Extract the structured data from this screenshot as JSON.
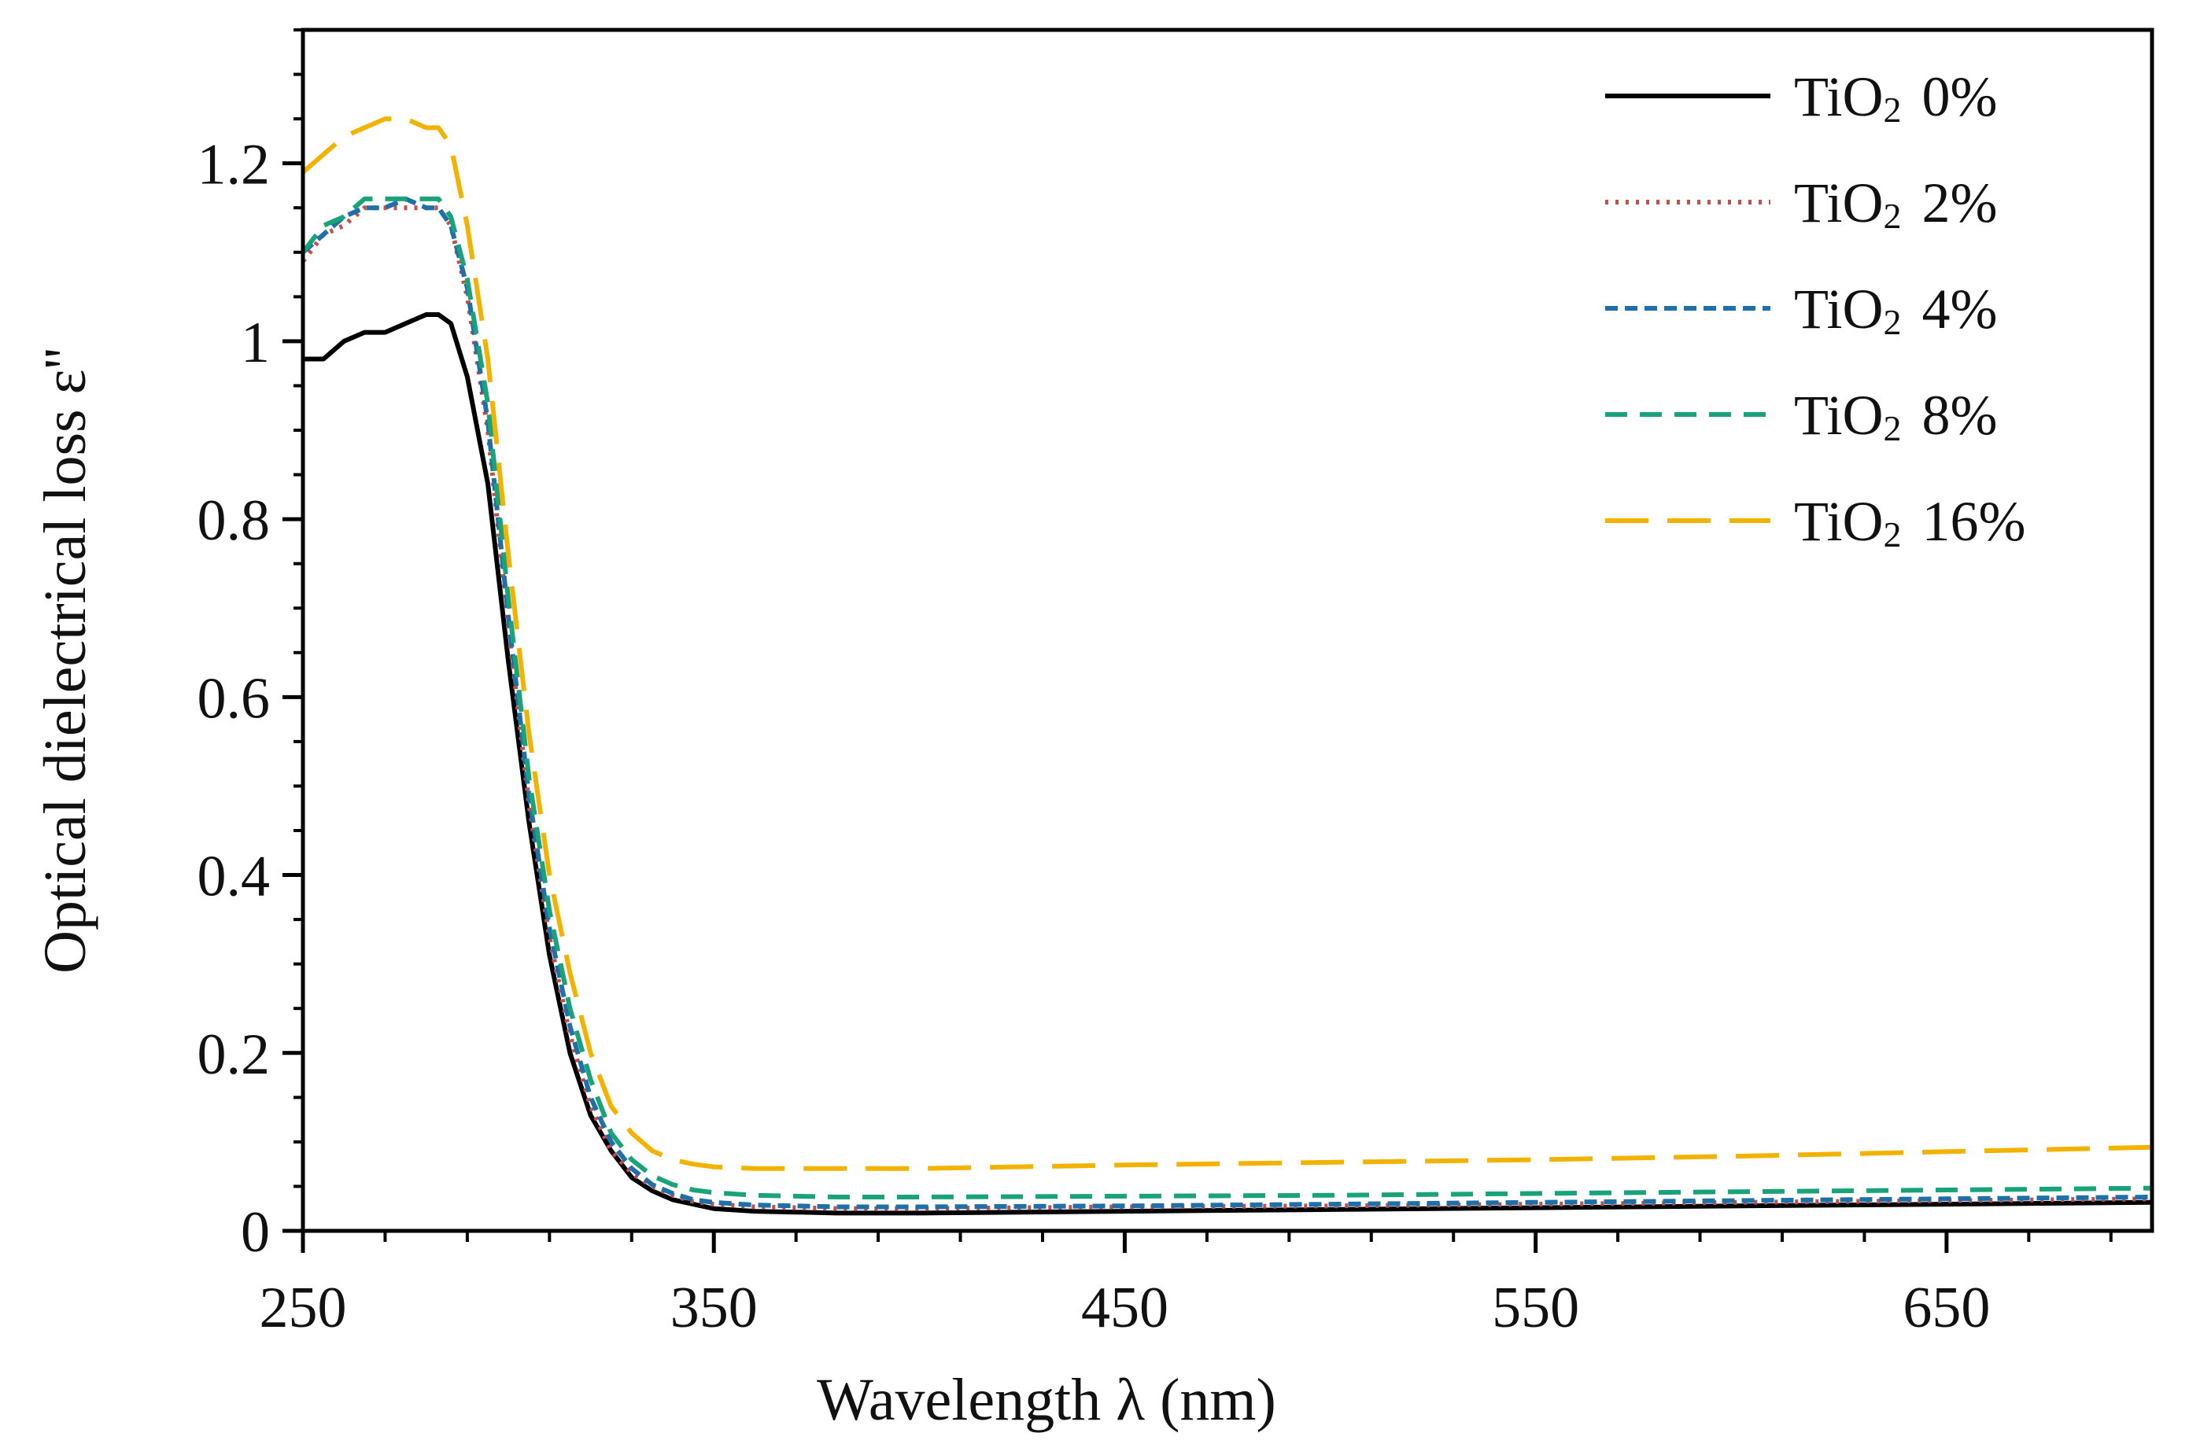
{
  "chart_data": {
    "type": "line",
    "title": "",
    "xlabel": "Wavelength λ (nm)",
    "ylabel": "Optical dielectrical loss ε''",
    "xlim": [
      250,
      700
    ],
    "ylim": [
      0,
      1.35
    ],
    "xticks": [
      250,
      350,
      450,
      550,
      650
    ],
    "xtick_labels": [
      "250",
      "350",
      "450",
      "550",
      "650"
    ],
    "yticks": [
      0,
      0.2,
      0.4,
      0.6,
      0.8,
      1.0,
      1.2
    ],
    "ytick_labels": [
      "0",
      "0.2",
      "0.4",
      "0.6",
      "0.8",
      "1",
      "1.2"
    ],
    "grid": false,
    "legend_position": "top-right",
    "x": [
      250,
      255,
      260,
      265,
      270,
      275,
      280,
      283,
      286,
      290,
      295,
      300,
      305,
      310,
      315,
      320,
      325,
      330,
      335,
      340,
      345,
      350,
      360,
      370,
      380,
      400,
      450,
      500,
      550,
      600,
      650,
      700
    ],
    "series": [
      {
        "name": "TiO2 0%",
        "name_main": "TiO",
        "name_sub": "2",
        "name_pct": "0%",
        "color": "#000000",
        "style": "solid",
        "values": [
          0.98,
          0.98,
          1.0,
          1.01,
          1.01,
          1.02,
          1.03,
          1.03,
          1.02,
          0.96,
          0.84,
          0.64,
          0.46,
          0.31,
          0.2,
          0.13,
          0.09,
          0.06,
          0.045,
          0.035,
          0.03,
          0.025,
          0.022,
          0.021,
          0.02,
          0.02,
          0.022,
          0.024,
          0.026,
          0.028,
          0.03,
          0.032
        ]
      },
      {
        "name": "TiO2 2%",
        "name_main": "TiO",
        "name_sub": "2",
        "name_pct": "2%",
        "color": "#c0504d",
        "style": "dotted",
        "values": [
          1.09,
          1.12,
          1.13,
          1.15,
          1.15,
          1.15,
          1.15,
          1.15,
          1.13,
          1.05,
          0.9,
          0.68,
          0.48,
          0.33,
          0.22,
          0.14,
          0.09,
          0.065,
          0.05,
          0.04,
          0.033,
          0.03,
          0.027,
          0.026,
          0.025,
          0.025,
          0.027,
          0.028,
          0.03,
          0.032,
          0.034,
          0.036
        ]
      },
      {
        "name": "TiO2 4%",
        "name_main": "TiO",
        "name_sub": "2",
        "name_pct": "4%",
        "color": "#1f6fa8",
        "style": "short-dash",
        "values": [
          1.1,
          1.12,
          1.14,
          1.15,
          1.15,
          1.16,
          1.15,
          1.15,
          1.13,
          1.06,
          0.91,
          0.69,
          0.49,
          0.34,
          0.23,
          0.15,
          0.1,
          0.07,
          0.052,
          0.042,
          0.035,
          0.032,
          0.029,
          0.028,
          0.027,
          0.027,
          0.028,
          0.03,
          0.032,
          0.034,
          0.036,
          0.038
        ]
      },
      {
        "name": "TiO2 8%",
        "name_main": "TiO",
        "name_sub": "2",
        "name_pct": "8%",
        "color": "#1aa37a",
        "style": "dash",
        "values": [
          1.1,
          1.13,
          1.14,
          1.16,
          1.16,
          1.16,
          1.16,
          1.16,
          1.14,
          1.07,
          0.93,
          0.71,
          0.51,
          0.36,
          0.25,
          0.17,
          0.11,
          0.08,
          0.062,
          0.052,
          0.046,
          0.043,
          0.04,
          0.039,
          0.038,
          0.038,
          0.039,
          0.04,
          0.042,
          0.044,
          0.046,
          0.048
        ]
      },
      {
        "name": "TiO2 16%",
        "name_main": "TiO",
        "name_sub": "2",
        "name_pct": "16%",
        "color": "#f2b300",
        "style": "long-dash",
        "values": [
          1.19,
          1.21,
          1.23,
          1.24,
          1.25,
          1.25,
          1.24,
          1.24,
          1.22,
          1.13,
          0.98,
          0.76,
          0.56,
          0.4,
          0.29,
          0.2,
          0.14,
          0.11,
          0.09,
          0.08,
          0.075,
          0.072,
          0.07,
          0.07,
          0.07,
          0.07,
          0.074,
          0.077,
          0.08,
          0.084,
          0.089,
          0.094
        ]
      }
    ]
  }
}
